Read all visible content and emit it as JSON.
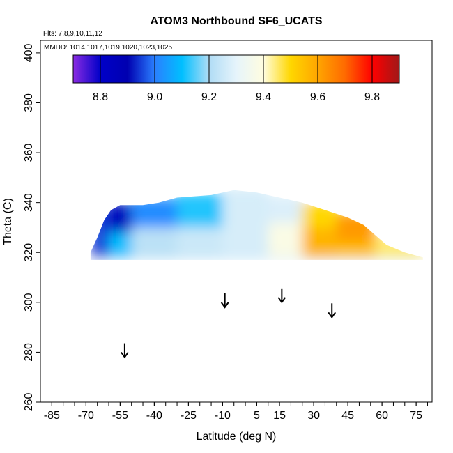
{
  "chart_data": {
    "type": "heatmap",
    "title": "ATOM3 Northbound SF6_UCATS",
    "subtitle_flights": "Flts: 7,8,9,10,11,12",
    "subtitle_dates": "MMDD: 1014,1017,1019,1020,1023,1025",
    "xlabel": "Latitude (deg N)",
    "ylabel": "Theta (C)",
    "xlim": [
      -90,
      82
    ],
    "ylim": [
      260,
      405
    ],
    "x_ticks": [
      "-85",
      "-70",
      "-55",
      "-40",
      "-25",
      "-10",
      "5",
      "15",
      "30",
      "45",
      "60",
      "75"
    ],
    "x_tick_values": [
      -85,
      -70,
      -55,
      -40,
      -25,
      -10,
      5,
      15,
      30,
      45,
      60,
      75
    ],
    "y_ticks": [
      "260",
      "280",
      "300",
      "320",
      "340",
      "360",
      "380",
      "400"
    ],
    "y_tick_values": [
      260,
      280,
      300,
      320,
      340,
      360,
      380,
      400
    ],
    "colorbar": {
      "range": [
        8.7,
        9.9
      ],
      "tick_labels": [
        "8.8",
        "9.0",
        "9.2",
        "9.4",
        "9.6",
        "9.8"
      ],
      "tick_values": [
        8.8,
        9.0,
        9.2,
        9.4,
        9.6,
        9.8
      ],
      "stops": [
        {
          "value": 8.7,
          "color": "#8a2be2"
        },
        {
          "value": 8.8,
          "color": "#0000c8"
        },
        {
          "value": 8.9,
          "color": "#0000b0"
        },
        {
          "value": 9.0,
          "color": "#2a7fff"
        },
        {
          "value": 9.1,
          "color": "#00bfff"
        },
        {
          "value": 9.2,
          "color": "#b0dcf5"
        },
        {
          "value": 9.3,
          "color": "#e6f4fb"
        },
        {
          "value": 9.4,
          "color": "#fffde0"
        },
        {
          "value": 9.5,
          "color": "#ffd700"
        },
        {
          "value": 9.6,
          "color": "#ffa500"
        },
        {
          "value": 9.7,
          "color": "#ff6a00"
        },
        {
          "value": 9.8,
          "color": "#ff0000"
        },
        {
          "value": 9.9,
          "color": "#a01818"
        }
      ]
    },
    "field": {
      "lat_range": [
        -68,
        78
      ],
      "theta_bottom": 317,
      "top_profile": [
        [
          -68,
          320
        ],
        [
          -65,
          326
        ],
        [
          -62,
          333
        ],
        [
          -59,
          337
        ],
        [
          -55,
          339
        ],
        [
          -45,
          339
        ],
        [
          -38,
          340
        ],
        [
          -30,
          342
        ],
        [
          -15,
          343
        ],
        [
          -5,
          345
        ],
        [
          5,
          344
        ],
        [
          15,
          342
        ],
        [
          25,
          340
        ],
        [
          35,
          337
        ],
        [
          45,
          334
        ],
        [
          52,
          331
        ],
        [
          57,
          327
        ],
        [
          62,
          323
        ],
        [
          70,
          320
        ],
        [
          78,
          318
        ]
      ],
      "blocks": [
        {
          "lat": [
            -68,
            -60
          ],
          "theta": [
            318,
            339
          ],
          "value": 8.95
        },
        {
          "lat": [
            -60,
            -50
          ],
          "theta": [
            328,
            340
          ],
          "value": 8.85
        },
        {
          "lat": [
            -60,
            -50
          ],
          "theta": [
            318,
            328
          ],
          "value": 9.1
        },
        {
          "lat": [
            -50,
            -30
          ],
          "theta": [
            330,
            342
          ],
          "value": 9.02
        },
        {
          "lat": [
            -50,
            -30
          ],
          "theta": [
            318,
            330
          ],
          "value": 9.22
        },
        {
          "lat": [
            -30,
            -10
          ],
          "theta": [
            330,
            344
          ],
          "value": 9.12
        },
        {
          "lat": [
            -30,
            -10
          ],
          "theta": [
            318,
            330
          ],
          "value": 9.25
        },
        {
          "lat": [
            -10,
            10
          ],
          "theta": [
            318,
            346
          ],
          "value": 9.27
        },
        {
          "lat": [
            10,
            25
          ],
          "theta": [
            332,
            343
          ],
          "value": 9.28
        },
        {
          "lat": [
            10,
            25
          ],
          "theta": [
            318,
            332
          ],
          "value": 9.38
        },
        {
          "lat": [
            25,
            40
          ],
          "theta": [
            330,
            340
          ],
          "value": 9.5
        },
        {
          "lat": [
            25,
            40
          ],
          "theta": [
            318,
            330
          ],
          "value": 9.57
        },
        {
          "lat": [
            40,
            57
          ],
          "theta": [
            324,
            336
          ],
          "value": 9.62
        },
        {
          "lat": [
            40,
            57
          ],
          "theta": [
            318,
            324
          ],
          "value": 9.55
        },
        {
          "lat": [
            57,
            78
          ],
          "theta": [
            318,
            327
          ],
          "value": 9.45
        }
      ]
    },
    "arrows": [
      {
        "lat": -53,
        "theta": 278
      },
      {
        "lat": -9,
        "theta": 298
      },
      {
        "lat": 16,
        "theta": 300
      },
      {
        "lat": 38,
        "theta": 294
      }
    ]
  }
}
